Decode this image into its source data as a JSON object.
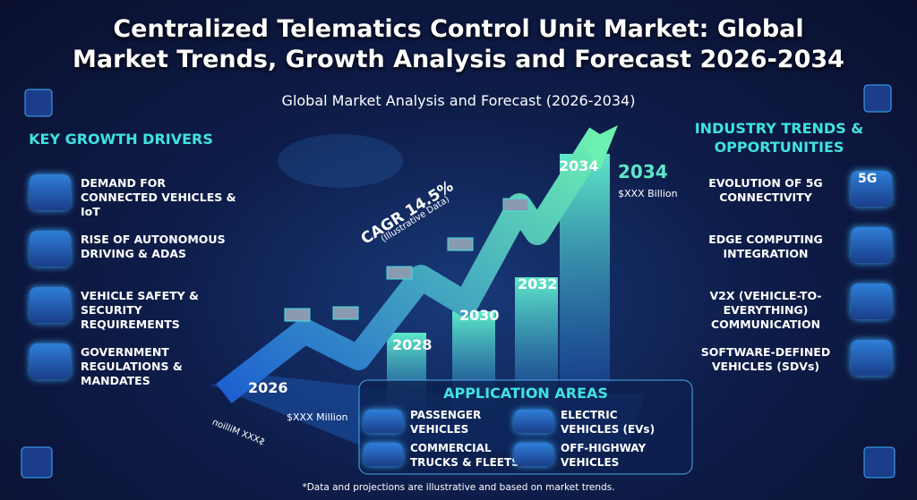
{
  "header": {
    "title_lines": [
      "Centralized Telematics Control Unit Market: Global",
      "Market Trends, Growth Analysis and Forecast 2026-2034"
    ],
    "subtitle": "Global Market Analysis and Forecast (2026-2034)"
  },
  "drivers": {
    "heading": "KEY GROWTH DRIVERS",
    "items": [
      "DEMAND FOR CONNECTED VEHICLES & IoT",
      "RISE OF AUTONOMOUS DRIVING & ADAS",
      "VEHICLE SAFETY & SECURITY REQUIREMENTS",
      "GOVERNMENT REGULATIONS & MANDATES"
    ]
  },
  "trends": {
    "heading": "INDUSTRY TRENDS & OPPORTUNITIES",
    "items": [
      "EVOLUTION OF 5G CONNECTIVITY",
      "EDGE COMPUTING INTEGRATION",
      "V2X (VEHICLE-TO-EVERYTHING) COMMUNICATION",
      "SOFTWARE-DEFINED VEHICLES (SDVs)"
    ],
    "icon_5g": "5G"
  },
  "forecast": {
    "cagr": "CAGR 14.5%",
    "cagr_note": "(Illustrative Data)",
    "years": [
      "2026",
      "2028",
      "2030",
      "2032",
      "2034"
    ],
    "end_year": "2034",
    "end_value": "$XXX Billion",
    "start_value": "$XXX Million",
    "base_label": "$XXX Million"
  },
  "applications": {
    "heading": "APPLICATION AREAS",
    "items": [
      "PASSENGER VEHICLES",
      "ELECTRIC VEHICLES (EVs)",
      "COMMERCIAL TRUCKS & FLEETS",
      "OFF-HIGHWAY VEHICLES"
    ]
  },
  "footnote": "*Data and projections are illustrative and based on market trends."
}
